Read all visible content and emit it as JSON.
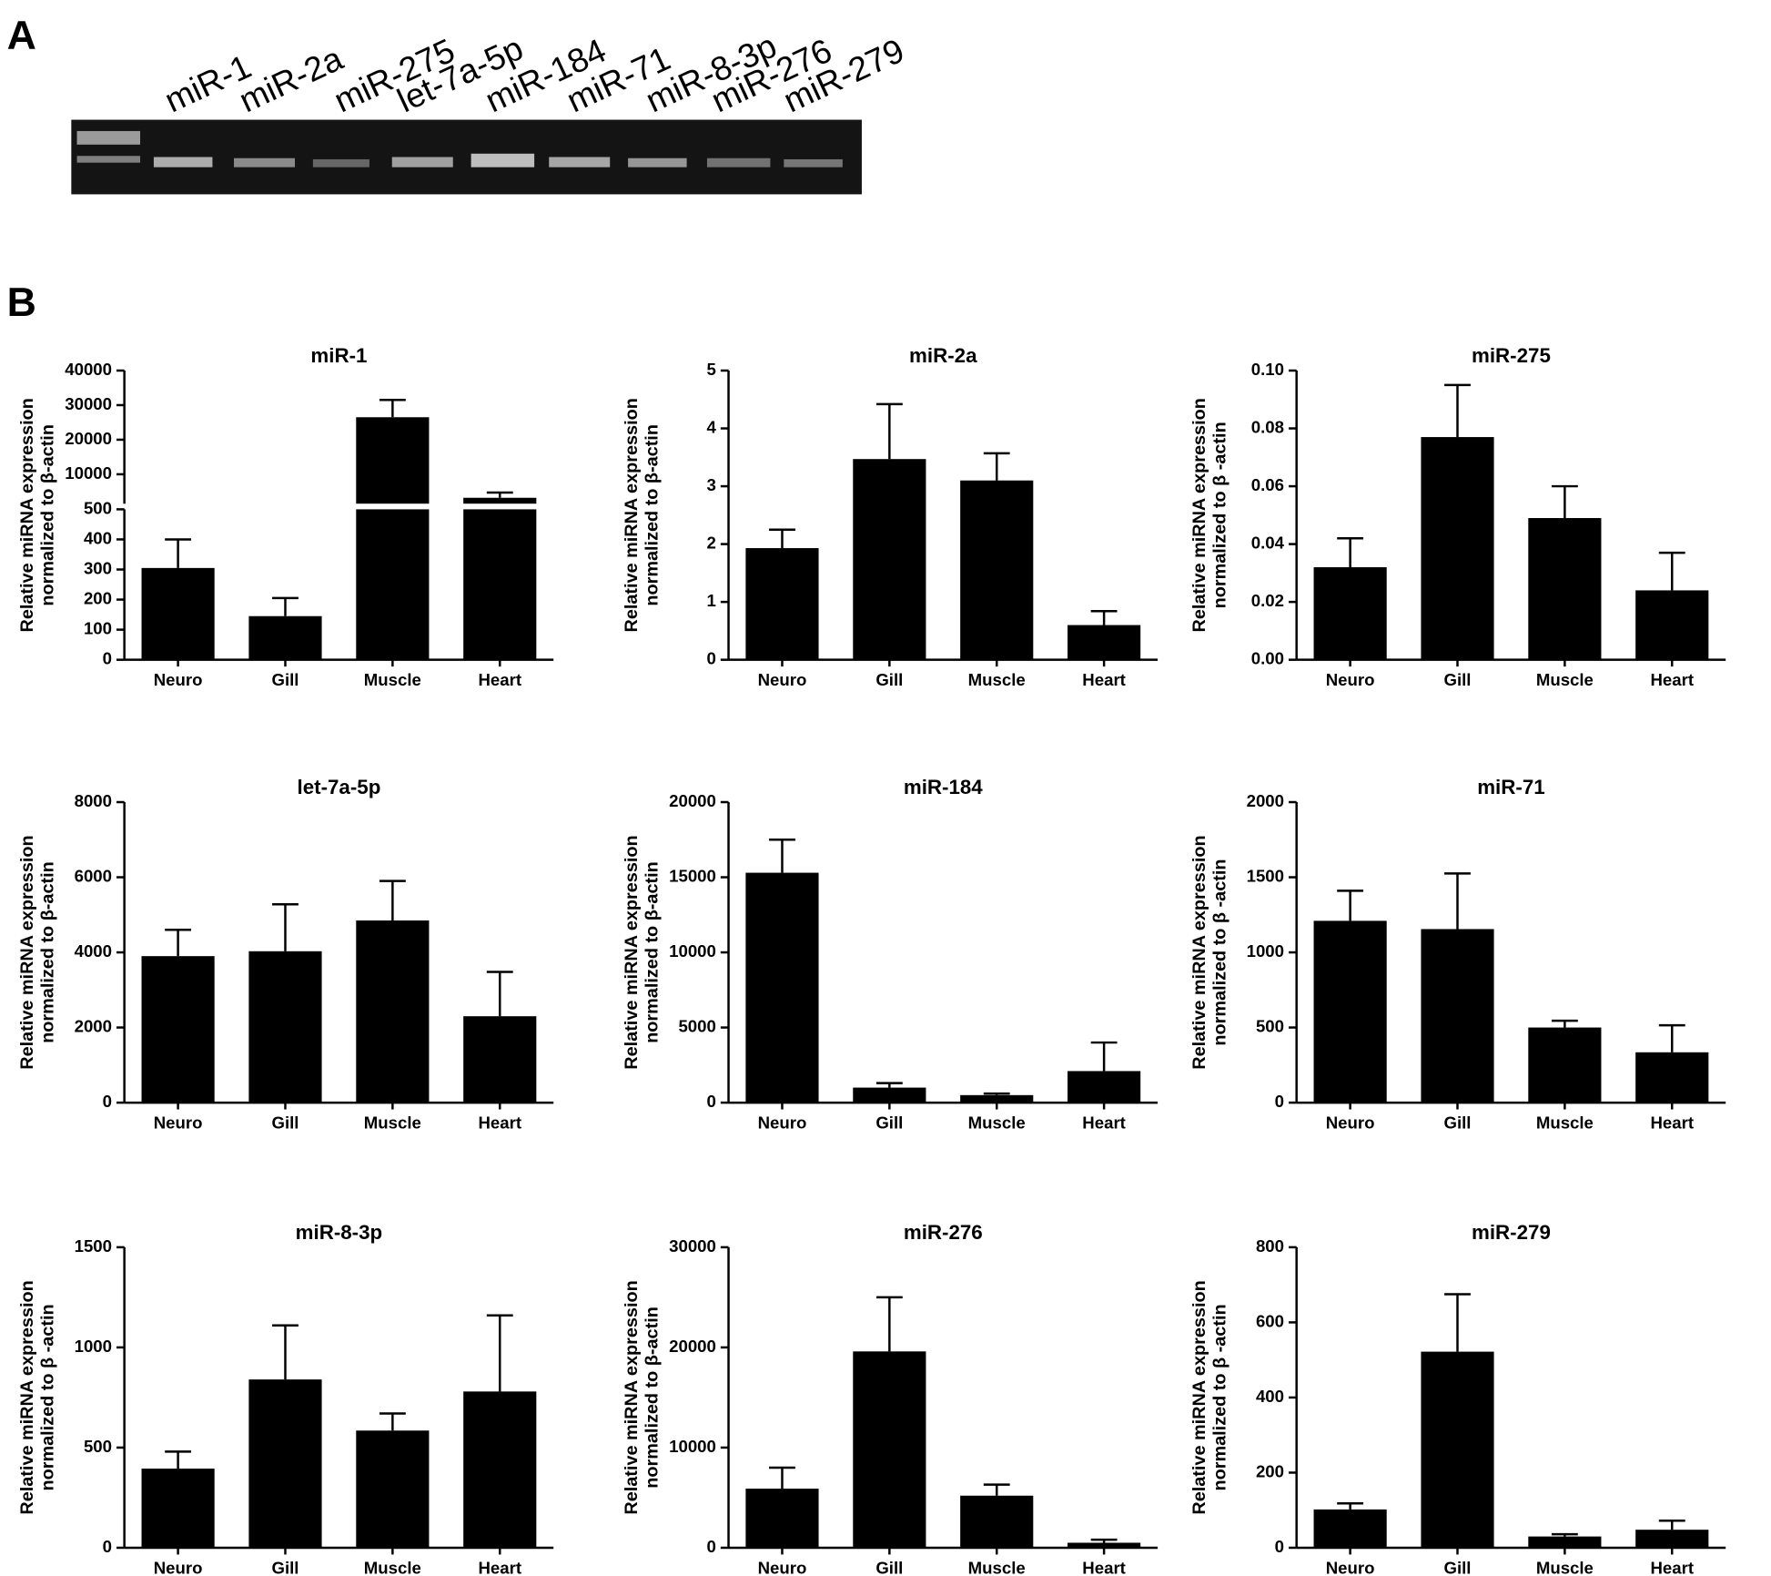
{
  "panel_a": {
    "label": "A",
    "lanes": [
      "miR-1",
      "miR-2a",
      "miR-275",
      "let-7a-5p",
      "miR-184",
      "miR-71",
      "miR-8-3p",
      "miR-276",
      "miR-279"
    ]
  },
  "panel_b": {
    "label": "B"
  },
  "chart_data": [
    {
      "type": "bar",
      "title": "miR-1",
      "ylabel": [
        "Relative miRNA expression",
        "normalized to β-actin"
      ],
      "categories": [
        "Neuro",
        "Gill",
        "Muscle",
        "Heart"
      ],
      "values": [
        305,
        145,
        26500,
        3200
      ],
      "errors": [
        95,
        60,
        5000,
        1500
      ],
      "ylim": [
        0,
        40000
      ],
      "ybreak": [
        500,
        1500
      ],
      "yticks": [
        0,
        100,
        200,
        300,
        400,
        500,
        10000,
        20000,
        30000,
        40000
      ],
      "color": "#000000"
    },
    {
      "type": "bar",
      "title": "miR-2a",
      "ylabel": [
        "Relative miRNA expression",
        "normalized to β-actin"
      ],
      "categories": [
        "Neuro",
        "Gill",
        "Muscle",
        "Heart"
      ],
      "values": [
        1.93,
        3.47,
        3.1,
        0.6
      ],
      "errors": [
        0.32,
        0.95,
        0.47,
        0.24
      ],
      "ylim": [
        0,
        5
      ],
      "yticks": [
        0,
        1,
        2,
        3,
        4,
        5
      ],
      "color": "#000000"
    },
    {
      "type": "bar",
      "title": "miR-275",
      "ylabel": [
        "Relative miRNA expression",
        "normalized to β -actin"
      ],
      "categories": [
        "Neuro",
        "Gill",
        "Muscle",
        "Heart"
      ],
      "values": [
        0.032,
        0.077,
        0.049,
        0.024
      ],
      "errors": [
        0.01,
        0.018,
        0.011,
        0.013
      ],
      "ylim": [
        0,
        0.1
      ],
      "yticks": [
        {
          "value": 0,
          "label": "0.00"
        },
        {
          "value": 0.02,
          "label": "0.02"
        },
        {
          "value": 0.04,
          "label": "0.04"
        },
        {
          "value": 0.06,
          "label": "0.06"
        },
        {
          "value": 0.08,
          "label": "0.08"
        },
        {
          "value": 0.1,
          "label": "0.10"
        }
      ],
      "color": "#000000"
    },
    {
      "type": "bar",
      "title": "let-7a-5p",
      "ylabel": [
        "Relative miRNA expression",
        "normalized to β-actin"
      ],
      "categories": [
        "Neuro",
        "Gill",
        "Muscle",
        "Heart"
      ],
      "values": [
        3900,
        4030,
        4850,
        2300
      ],
      "errors": [
        700,
        1250,
        1050,
        1180
      ],
      "ylim": [
        0,
        8000
      ],
      "yticks": [
        0,
        2000,
        4000,
        6000,
        8000
      ],
      "color": "#000000"
    },
    {
      "type": "bar",
      "title": "miR-184",
      "ylabel": [
        "Relative miRNA expression",
        "normalized to β-actin"
      ],
      "categories": [
        "Neuro",
        "Gill",
        "Muscle",
        "Heart"
      ],
      "values": [
        15300,
        1000,
        500,
        2100
      ],
      "errors": [
        2200,
        300,
        100,
        1900
      ],
      "ylim": [
        0,
        20000
      ],
      "yticks": [
        0,
        5000,
        10000,
        15000,
        20000
      ],
      "color": "#000000"
    },
    {
      "type": "bar",
      "title": "miR-71",
      "ylabel": [
        "Relative miRNA expression",
        "normalized to β -actin"
      ],
      "categories": [
        "Neuro",
        "Gill",
        "Muscle",
        "Heart"
      ],
      "values": [
        1210,
        1155,
        500,
        335
      ],
      "errors": [
        200,
        370,
        45,
        180
      ],
      "ylim": [
        0,
        2000
      ],
      "yticks": [
        0,
        500,
        1000,
        1500,
        2000
      ],
      "color": "#000000"
    },
    {
      "type": "bar",
      "title": "miR-8-3p",
      "ylabel": [
        "Relative miRNA expression",
        "normalized to β -actin"
      ],
      "categories": [
        "Neuro",
        "Gill",
        "Muscle",
        "Heart"
      ],
      "values": [
        395,
        840,
        585,
        780
      ],
      "errors": [
        85,
        270,
        85,
        380
      ],
      "ylim": [
        0,
        1500
      ],
      "yticks": [
        0,
        500,
        1000,
        1500
      ],
      "color": "#000000"
    },
    {
      "type": "bar",
      "title": "miR-276",
      "ylabel": [
        "Relative miRNA expression",
        "normalized to β-actin"
      ],
      "categories": [
        "Neuro",
        "Gill",
        "Muscle",
        "Heart"
      ],
      "values": [
        5900,
        19600,
        5200,
        500
      ],
      "errors": [
        2100,
        5400,
        1100,
        300
      ],
      "ylim": [
        0,
        30000
      ],
      "yticks": [
        0,
        10000,
        20000,
        30000
      ],
      "color": "#000000"
    },
    {
      "type": "bar",
      "title": "miR-279",
      "ylabel": [
        "Relative miRNA expression",
        "normalized to β -actin"
      ],
      "categories": [
        "Neuro",
        "Gill",
        "Muscle",
        "Heart"
      ],
      "values": [
        102,
        522,
        30,
        48
      ],
      "errors": [
        16,
        153,
        6,
        24
      ],
      "ylim": [
        0,
        800
      ],
      "yticks": [
        0,
        200,
        400,
        600,
        800
      ],
      "color": "#000000"
    }
  ]
}
